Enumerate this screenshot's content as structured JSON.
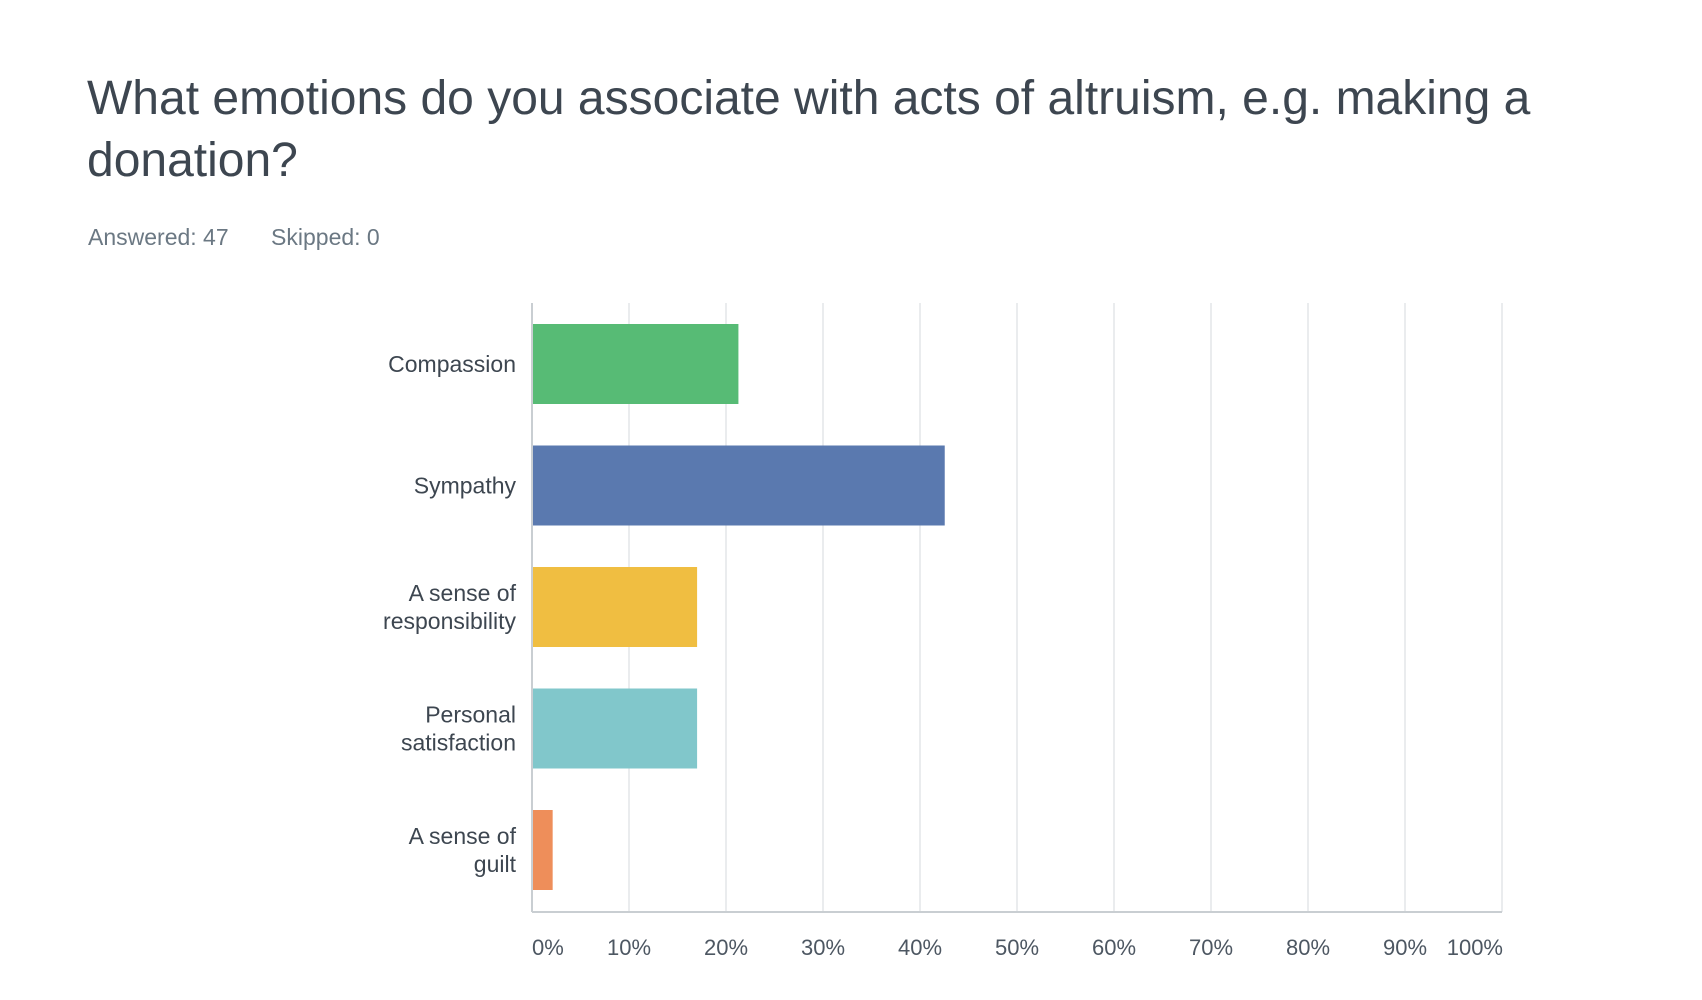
{
  "question": {
    "title": "What emotions do you associate with acts of altruism, e.g. making a donation?",
    "answered": "Answered: 47",
    "skipped": "Skipped: 0"
  },
  "chart_data": {
    "type": "bar",
    "orientation": "horizontal",
    "categories": [
      "Compassion",
      "Sympathy",
      "A sense of responsibility",
      "Personal satisfaction",
      "A sense of guilt"
    ],
    "category_label_lines": [
      [
        "Compassion"
      ],
      [
        "Sympathy"
      ],
      [
        "A sense of",
        "responsibility"
      ],
      [
        "Personal",
        "satisfaction"
      ],
      [
        "A sense of",
        "guilt"
      ]
    ],
    "values": [
      21.28,
      42.55,
      17.02,
      17.02,
      2.13
    ],
    "colors": [
      "#57bb75",
      "#5a79af",
      "#f0be41",
      "#81c7cb",
      "#ee8e5a"
    ],
    "xlim": [
      0,
      100
    ],
    "x_ticks": [
      "0%",
      "10%",
      "20%",
      "30%",
      "40%",
      "50%",
      "60%",
      "70%",
      "80%",
      "90%",
      "100%"
    ],
    "grid": true,
    "legend": "none",
    "title": "",
    "xlabel": "",
    "ylabel": ""
  }
}
